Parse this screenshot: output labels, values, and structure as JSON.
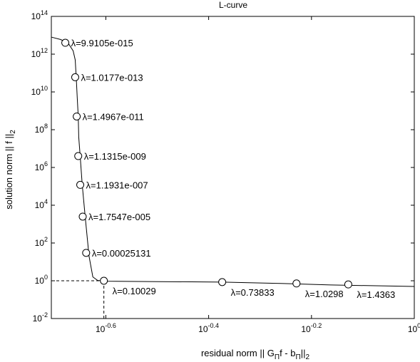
{
  "chart_data": {
    "type": "line",
    "title": "L-curve",
    "xlabel": {
      "parts": [
        {
          "t": "residual norm || G",
          "sub": false
        },
        {
          "t": "Π",
          "sub": true
        },
        {
          "t": "f - b",
          "sub": false
        },
        {
          "t": "Π",
          "sub": true
        },
        {
          "t": "||",
          "sub": false
        },
        {
          "t": "2",
          "sub": true
        }
      ]
    },
    "ylabel": {
      "parts": [
        {
          "t": "solution norm || f ||",
          "sub": false
        },
        {
          "t": "2",
          "sub": true
        }
      ]
    },
    "xscale": "log",
    "yscale": "log",
    "xlim": [
      0.1968,
      1.0
    ],
    "ylim": [
      0.01,
      100000000000000.0
    ],
    "xticks": [
      {
        "value": 0.2512,
        "base": "10",
        "exp": "-0.6"
      },
      {
        "value": 0.3981,
        "base": "10",
        "exp": "-0.4"
      },
      {
        "value": 0.631,
        "base": "10",
        "exp": "-0.2"
      },
      {
        "value": 1.0,
        "base": "10",
        "exp": "0"
      }
    ],
    "yticks": [
      {
        "value": 0.01,
        "base": "10",
        "exp": "-2"
      },
      {
        "value": 1,
        "base": "10",
        "exp": "0"
      },
      {
        "value": 100,
        "base": "10",
        "exp": "2"
      },
      {
        "value": 10000,
        "base": "10",
        "exp": "4"
      },
      {
        "value": 1000000,
        "base": "10",
        "exp": "6"
      },
      {
        "value": 100000000,
        "base": "10",
        "exp": "8"
      },
      {
        "value": 10000000000,
        "base": "10",
        "exp": "10"
      },
      {
        "value": 1000000000000,
        "base": "10",
        "exp": "12"
      },
      {
        "value": 100000000000000,
        "base": "10",
        "exp": "14"
      }
    ],
    "grid": false,
    "curve": [
      [
        0.1968,
        8000000000000.0
      ],
      [
        0.205,
        6000000000000.0
      ],
      [
        0.212,
        4000000000000.0
      ],
      [
        0.217,
        1500000000000.0
      ],
      [
        0.219,
        500000000000.0
      ],
      [
        0.22,
        60000000000.0
      ],
      [
        0.221,
        5000000000.0
      ],
      [
        0.222,
        500000000.0
      ],
      [
        0.2225,
        40000000.0
      ],
      [
        0.224,
        3500000.0
      ],
      [
        0.226,
        120000.0
      ],
      [
        0.229,
        2500.0
      ],
      [
        0.233,
        20
      ],
      [
        0.237,
        1.6
      ],
      [
        0.242,
        1.05
      ],
      [
        0.2512,
        0.95
      ],
      [
        0.32,
        0.9
      ],
      [
        0.423,
        0.85
      ],
      [
        0.55,
        0.72
      ],
      [
        0.688,
        0.6
      ],
      [
        1.0,
        0.5
      ]
    ],
    "points": [
      {
        "x": 0.2095,
        "y": 4000000000000.0,
        "label": "λ=9.9105e-015"
      },
      {
        "x": 0.219,
        "y": 60000000000.0,
        "label": "λ=1.0177e-013"
      },
      {
        "x": 0.2205,
        "y": 500000000.0,
        "label": "λ=1.4967e-011"
      },
      {
        "x": 0.222,
        "y": 4000000.0,
        "label": "λ=1.1315e-009"
      },
      {
        "x": 0.224,
        "y": 120000.0,
        "label": "λ=1.1931e-007"
      },
      {
        "x": 0.2265,
        "y": 2500.0,
        "label": "λ=1.7547e-005"
      },
      {
        "x": 0.23,
        "y": 30,
        "label": "λ=0.00025131"
      },
      {
        "x": 0.249,
        "y": 1.0,
        "label": "λ=0.10029"
      },
      {
        "x": 0.423,
        "y": 0.85,
        "label": "λ=0.73833"
      },
      {
        "x": 0.59,
        "y": 0.72,
        "label": "λ=1.0298"
      },
      {
        "x": 0.744,
        "y": 0.64,
        "label": "λ=1.4363"
      }
    ],
    "corner": {
      "x": 0.249,
      "y": 1.0
    }
  }
}
